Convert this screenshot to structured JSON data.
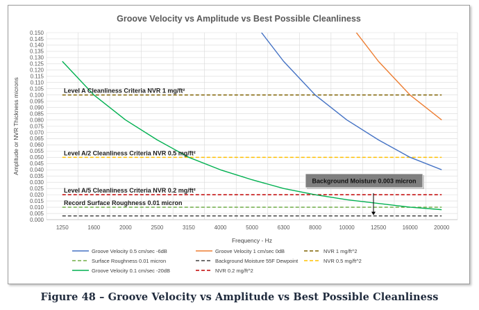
{
  "caption": "Figure 48 – Groove Velocity vs Amplitude vs Best Possible Cleanliness",
  "chart_data": {
    "type": "line",
    "title": "Groove Velocity vs Amplitude vs Best Possible Cleanliness",
    "xlabel": "Frequency - Hz",
    "ylabel": "Amplitude or NVR Thickness microns",
    "categories": [
      "1250",
      "1600",
      "2000",
      "2500",
      "3150",
      "4000",
      "5000",
      "6300",
      "8000",
      "10000",
      "12500",
      "16000",
      "20000"
    ],
    "y_ticks": [
      "0.150",
      "0.145",
      "0.140",
      "0.135",
      "0.130",
      "0.125",
      "0.120",
      "0.115",
      "0.110",
      "0.105",
      "0.100",
      "0.095",
      "0.090",
      "0.085",
      "0.080",
      "0.075",
      "0.070",
      "0.065",
      "0.060",
      "0.055",
      "0.050",
      "0.045",
      "0.040",
      "0.035",
      "0.030",
      "0.025",
      "0.020",
      "0.015",
      "0.010",
      "0.005",
      "0.000"
    ],
    "ylim": [
      0,
      0.15
    ],
    "grid": true,
    "legend_position": "bottom",
    "series": [
      {
        "name": "Groove Velocity 0.5 cm/sec -6dB",
        "color": "#4472c4",
        "dash": "solid",
        "values": [
          null,
          null,
          null,
          null,
          null,
          null,
          0.16,
          0.127,
          0.1,
          0.08,
          0.064,
          0.05,
          0.04
        ]
      },
      {
        "name": "Groove Velocity 1 cm/sec 0dB",
        "color": "#ed7d31",
        "dash": "solid",
        "values": [
          null,
          null,
          null,
          null,
          null,
          null,
          null,
          null,
          null,
          0.16,
          0.127,
          0.1,
          0.08
        ]
      },
      {
        "name": "NVR 1 mg/ft^2",
        "color": "#7f6000",
        "dash": "dashed",
        "values": [
          0.1,
          0.1,
          0.1,
          0.1,
          0.1,
          0.1,
          0.1,
          0.1,
          0.1,
          0.1,
          0.1,
          0.1,
          0.1
        ]
      },
      {
        "name": "Surface Roughness 0.01 micron",
        "color": "#70ad47",
        "dash": "dashed",
        "values": [
          0.01,
          0.01,
          0.01,
          0.01,
          0.01,
          0.01,
          0.01,
          0.01,
          0.01,
          0.01,
          0.01,
          0.01,
          0.01
        ]
      },
      {
        "name": "Background Moisture 55F Dewpoint",
        "color": "#404040",
        "dash": "dashed",
        "values": [
          0.003,
          0.003,
          0.003,
          0.003,
          0.003,
          0.003,
          0.003,
          0.003,
          0.003,
          0.003,
          0.003,
          0.003,
          0.003
        ]
      },
      {
        "name": "NVR 0.5 mg/ft^2",
        "color": "#ffc000",
        "dash": "dashed",
        "values": [
          0.05,
          0.05,
          0.05,
          0.05,
          0.05,
          0.05,
          0.05,
          0.05,
          0.05,
          0.05,
          0.05,
          0.05,
          0.05
        ]
      },
      {
        "name": "Groove Velocity 0.1 cm/sec -20dB",
        "color": "#00b050",
        "dash": "solid",
        "values": [
          0.127,
          0.1,
          0.08,
          0.064,
          0.05,
          0.04,
          0.032,
          0.025,
          0.02,
          0.016,
          0.013,
          0.01,
          0.008
        ]
      },
      {
        "name": "NVR 0.2 mg/ft^2",
        "color": "#c00000",
        "dash": "dashed",
        "values": [
          0.02,
          0.02,
          0.02,
          0.02,
          0.02,
          0.02,
          0.02,
          0.02,
          0.02,
          0.02,
          0.02,
          0.02,
          0.02
        ]
      }
    ],
    "annotations": [
      {
        "text": "Level A Cleanliness Criteria  NVR 1 mg/ft²",
        "y": 0.1
      },
      {
        "text": "Level A/2 Cleanliness Criteria  NVR 0.5 mg/ft²",
        "y": 0.05
      },
      {
        "text": "Level A/5 Cleanliness Criteria  NVR 0.2 mg/ft²",
        "y": 0.02
      },
      {
        "text": "Record Surface Roughness 0.01 micron",
        "y": 0.01
      }
    ],
    "callout": {
      "text": "Background Moisture 0.003 micron",
      "fill": "#808080"
    }
  }
}
